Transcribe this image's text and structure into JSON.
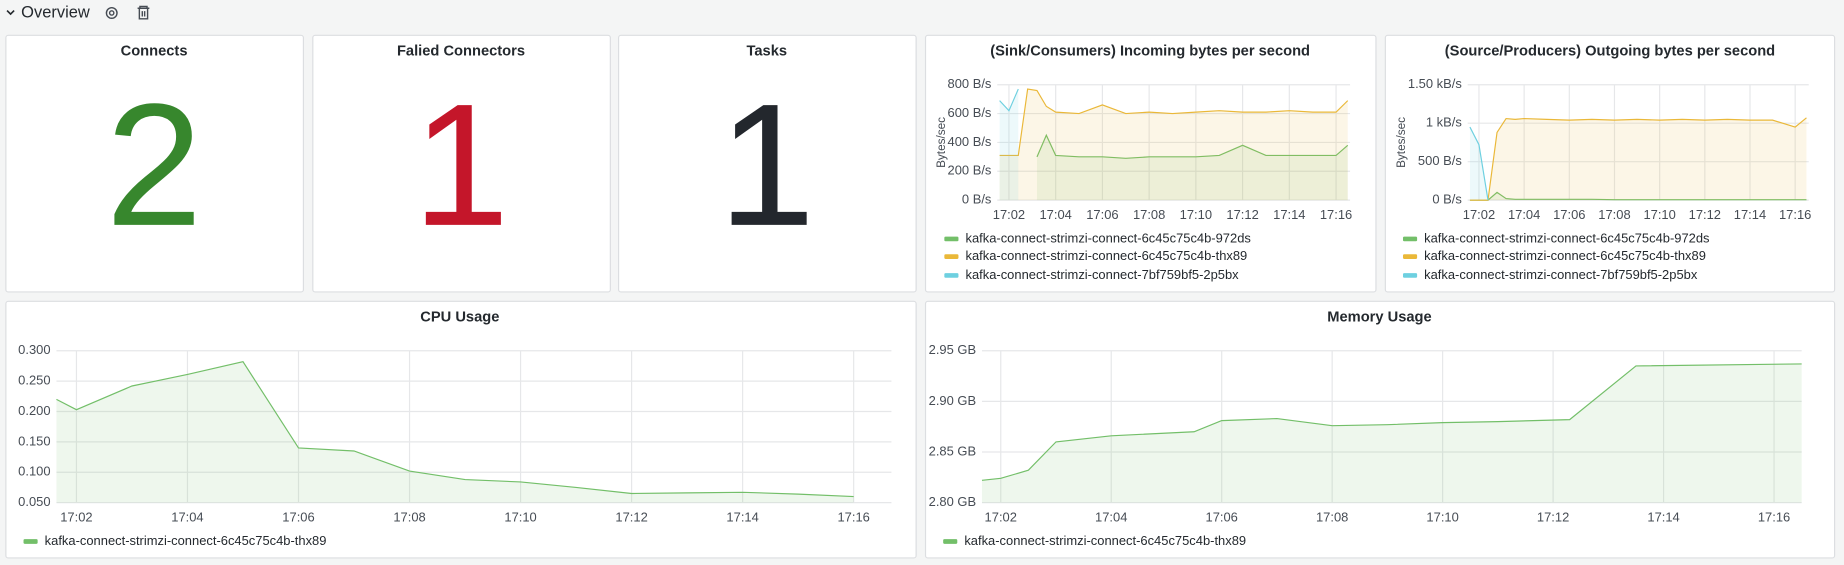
{
  "header": {
    "title": "Overview"
  },
  "stats": [
    {
      "title": "Connects",
      "value": 2,
      "color": "#37872d"
    },
    {
      "title": "Falied Connectors",
      "value": 1,
      "color": "#c4162a"
    },
    {
      "title": "Tasks",
      "value": 1,
      "color": "#23272d"
    }
  ],
  "chart_data": [
    {
      "type": "line",
      "title": "(Sink/Consumers) Incoming bytes per second",
      "ylabel": "Bytes/sec",
      "grid": true,
      "fill": true,
      "x": [
        1.6,
        2.0,
        2.4,
        2.8,
        3.2,
        3.6,
        4,
        5,
        6,
        7,
        8,
        9,
        10,
        11,
        12,
        13,
        14,
        15,
        16,
        16.5
      ],
      "xlim": [
        1.5,
        16.6
      ],
      "xticks": [
        {
          "value": 2,
          "label": "17:02"
        },
        {
          "value": 4,
          "label": "17:04"
        },
        {
          "value": 6,
          "label": "17:06"
        },
        {
          "value": 8,
          "label": "17:08"
        },
        {
          "value": 10,
          "label": "17:10"
        },
        {
          "value": 12,
          "label": "17:12"
        },
        {
          "value": 14,
          "label": "17:14"
        },
        {
          "value": 16,
          "label": "17:16"
        }
      ],
      "ylim": [
        0,
        800
      ],
      "yticks": [
        {
          "value": 0,
          "label": "0 B/s"
        },
        {
          "value": 200,
          "label": "200 B/s"
        },
        {
          "value": 400,
          "label": "400 B/s"
        },
        {
          "value": 600,
          "label": "600 B/s"
        },
        {
          "value": 800,
          "label": "800 B/s"
        }
      ],
      "series": [
        {
          "name": "kafka-connect-strimzi-connect-6c45c75c4b-972ds",
          "color": "#73bf69",
          "values": [
            null,
            null,
            null,
            null,
            300,
            450,
            310,
            300,
            300,
            290,
            300,
            300,
            300,
            310,
            380,
            310,
            310,
            310,
            310,
            380
          ]
        },
        {
          "name": "kafka-connect-strimzi-connect-6c45c75c4b-thx89",
          "color": "#eab839",
          "values": [
            310,
            310,
            310,
            770,
            760,
            650,
            610,
            600,
            660,
            600,
            610,
            600,
            610,
            620,
            610,
            610,
            620,
            610,
            610,
            690
          ]
        },
        {
          "name": "kafka-connect-strimzi-connect-7bf759bf5-2p5bx",
          "color": "#6ed0e0",
          "values": [
            690,
            620,
            770,
            null,
            null,
            null,
            null,
            null,
            null,
            null,
            null,
            null,
            null,
            null,
            null,
            null,
            null,
            null,
            null,
            null
          ]
        }
      ]
    },
    {
      "type": "line",
      "title": "(Source/Producers) Outgoing bytes per second",
      "ylabel": "Bytes/sec",
      "grid": true,
      "fill": true,
      "x": [
        1.6,
        2.0,
        2.4,
        2.8,
        3.2,
        3.6,
        4,
        5,
        6,
        7,
        8,
        9,
        10,
        11,
        12,
        13,
        14,
        15,
        16,
        16.5
      ],
      "xlim": [
        1.5,
        16.6
      ],
      "xticks": [
        {
          "value": 2,
          "label": "17:02"
        },
        {
          "value": 4,
          "label": "17:04"
        },
        {
          "value": 6,
          "label": "17:06"
        },
        {
          "value": 8,
          "label": "17:08"
        },
        {
          "value": 10,
          "label": "17:10"
        },
        {
          "value": 12,
          "label": "17:12"
        },
        {
          "value": 14,
          "label": "17:14"
        },
        {
          "value": 16,
          "label": "17:16"
        }
      ],
      "ylim": [
        0,
        1500
      ],
      "yticks": [
        {
          "value": 0,
          "label": "0 B/s"
        },
        {
          "value": 500,
          "label": "500 B/s"
        },
        {
          "value": 1000,
          "label": "1 kB/s"
        },
        {
          "value": 1500,
          "label": "1.50 kB/s"
        }
      ],
      "series": [
        {
          "name": "kafka-connect-strimzi-connect-6c45c75c4b-972ds",
          "color": "#73bf69",
          "values": [
            0,
            0,
            0,
            100,
            20,
            10,
            10,
            10,
            10,
            10,
            5,
            5,
            5,
            5,
            5,
            5,
            5,
            5,
            5,
            5
          ]
        },
        {
          "name": "kafka-connect-strimzi-connect-6c45c75c4b-thx89",
          "color": "#eab839",
          "values": [
            0,
            0,
            0,
            880,
            1060,
            1050,
            1060,
            1050,
            1040,
            1050,
            1040,
            1050,
            1040,
            1050,
            1040,
            1050,
            1040,
            1040,
            950,
            1070
          ]
        },
        {
          "name": "kafka-connect-strimzi-connect-7bf759bf5-2p5bx",
          "color": "#6ed0e0",
          "values": [
            950,
            720,
            0,
            null,
            null,
            null,
            null,
            null,
            null,
            null,
            null,
            null,
            null,
            null,
            null,
            null,
            null,
            null,
            null,
            null
          ]
        }
      ]
    },
    {
      "type": "line",
      "title": "CPU Usage",
      "grid": true,
      "fill": true,
      "x": [
        1.64,
        2,
        3,
        4,
        5,
        6,
        7,
        8,
        9,
        10,
        11,
        12,
        13,
        14,
        15,
        16
      ],
      "xlim": [
        1.64,
        16.68
      ],
      "xticks": [
        {
          "value": 2,
          "label": "17:02"
        },
        {
          "value": 4,
          "label": "17:04"
        },
        {
          "value": 6,
          "label": "17:06"
        },
        {
          "value": 8,
          "label": "17:08"
        },
        {
          "value": 10,
          "label": "17:10"
        },
        {
          "value": 12,
          "label": "17:12"
        },
        {
          "value": 14,
          "label": "17:14"
        },
        {
          "value": 16,
          "label": "17:16"
        }
      ],
      "ylim": [
        0.05,
        0.3
      ],
      "yticks": [
        {
          "value": 0.05,
          "label": "0.050"
        },
        {
          "value": 0.1,
          "label": "0.100"
        },
        {
          "value": 0.15,
          "label": "0.150"
        },
        {
          "value": 0.2,
          "label": "0.200"
        },
        {
          "value": 0.25,
          "label": "0.250"
        },
        {
          "value": 0.3,
          "label": "0.300"
        }
      ],
      "series": [
        {
          "name": "kafka-connect-strimzi-connect-6c45c75c4b-thx89",
          "color": "#73bf69",
          "values": [
            0.22,
            0.203,
            0.242,
            0.261,
            0.282,
            0.14,
            0.135,
            0.102,
            0.088,
            0.084,
            0.075,
            0.065,
            0.066,
            0.067,
            0.064,
            0.06
          ]
        }
      ]
    },
    {
      "type": "line",
      "title": "Memory Usage",
      "grid": true,
      "fill": true,
      "x": [
        1.66,
        2,
        2.5,
        3,
        4,
        5.5,
        6,
        7,
        8,
        9,
        10,
        11,
        12.3,
        13.5,
        16.5
      ],
      "xlim": [
        1.66,
        16.5
      ],
      "xticks": [
        {
          "value": 2,
          "label": "17:02"
        },
        {
          "value": 4,
          "label": "17:04"
        },
        {
          "value": 6,
          "label": "17:06"
        },
        {
          "value": 8,
          "label": "17:08"
        },
        {
          "value": 10,
          "label": "17:10"
        },
        {
          "value": 12,
          "label": "17:12"
        },
        {
          "value": 14,
          "label": "17:14"
        },
        {
          "value": 16,
          "label": "17:16"
        }
      ],
      "ylim": [
        2.8,
        2.95
      ],
      "yticks": [
        {
          "value": 2.8,
          "label": "2.80 GB"
        },
        {
          "value": 2.85,
          "label": "2.85 GB"
        },
        {
          "value": 2.9,
          "label": "2.90 GB"
        },
        {
          "value": 2.95,
          "label": "2.95 GB"
        }
      ],
      "series": [
        {
          "name": "kafka-connect-strimzi-connect-6c45c75c4b-thx89",
          "color": "#73bf69",
          "values": [
            2.822,
            2.824,
            2.832,
            2.86,
            2.866,
            2.87,
            2.881,
            2.883,
            2.876,
            2.877,
            2.879,
            2.88,
            2.882,
            2.935,
            2.937
          ]
        }
      ]
    }
  ]
}
